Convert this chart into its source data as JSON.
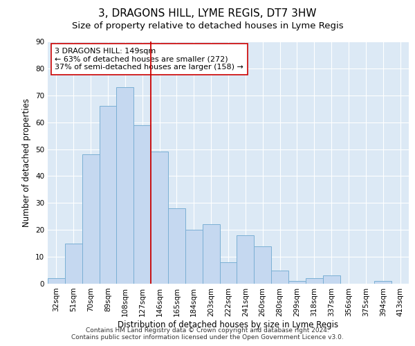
{
  "title": "3, DRAGONS HILL, LYME REGIS, DT7 3HW",
  "subtitle": "Size of property relative to detached houses in Lyme Regis",
  "xlabel": "Distribution of detached houses by size in Lyme Regis",
  "ylabel": "Number of detached properties",
  "categories": [
    "32sqm",
    "51sqm",
    "70sqm",
    "89sqm",
    "108sqm",
    "127sqm",
    "146sqm",
    "165sqm",
    "184sqm",
    "203sqm",
    "222sqm",
    "241sqm",
    "260sqm",
    "280sqm",
    "299sqm",
    "318sqm",
    "337sqm",
    "356sqm",
    "375sqm",
    "394sqm",
    "413sqm"
  ],
  "values": [
    2,
    15,
    48,
    66,
    73,
    59,
    49,
    28,
    20,
    22,
    8,
    18,
    14,
    5,
    1,
    2,
    3,
    0,
    0,
    1,
    0
  ],
  "bar_color": "#c5d8f0",
  "bar_edge_color": "#7aafd4",
  "reference_line_x": 6,
  "reference_line_color": "#cc0000",
  "annotation_text": "3 DRAGONS HILL: 149sqm\n← 63% of detached houses are smaller (272)\n37% of semi-detached houses are larger (158) →",
  "annotation_box_color": "white",
  "annotation_box_edge_color": "#cc0000",
  "ylim": [
    0,
    90
  ],
  "yticks": [
    0,
    10,
    20,
    30,
    40,
    50,
    60,
    70,
    80,
    90
  ],
  "background_color": "#dce9f5",
  "footer_line1": "Contains HM Land Registry data © Crown copyright and database right 2024.",
  "footer_line2": "Contains public sector information licensed under the Open Government Licence v3.0.",
  "title_fontsize": 11,
  "subtitle_fontsize": 9.5,
  "label_fontsize": 8.5,
  "tick_fontsize": 7.5,
  "footer_fontsize": 6.5
}
